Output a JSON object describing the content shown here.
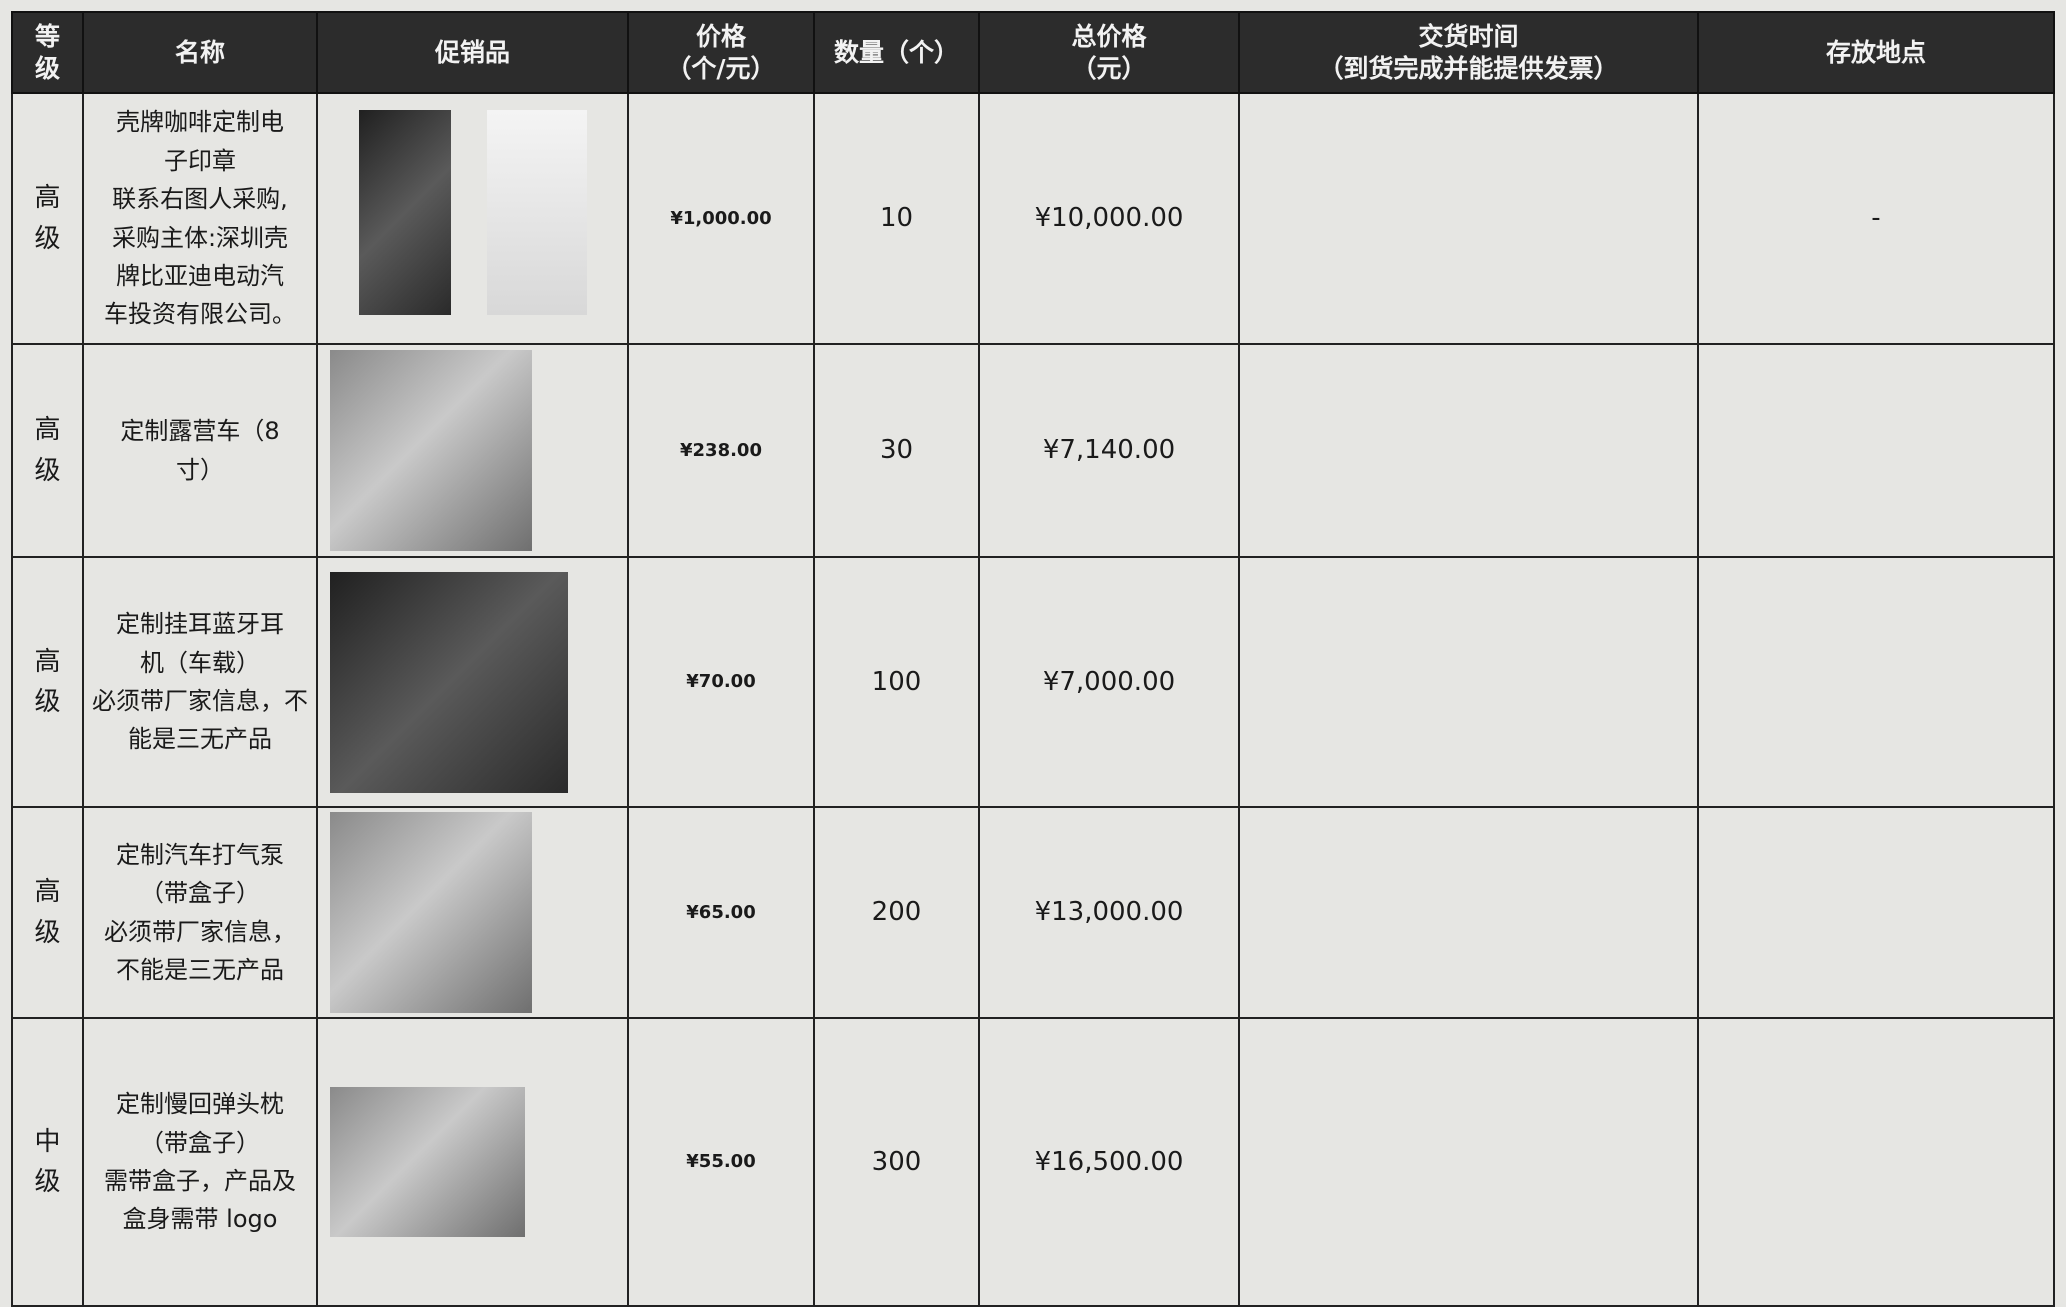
{
  "header": {
    "grade": [
      "等",
      "级"
    ],
    "name": "名称",
    "product": "促销品",
    "price": [
      "价格",
      "（个/元）"
    ],
    "quantity": "数量（个）",
    "total": [
      "总价格",
      "（元）"
    ],
    "delivery": [
      "交货时间",
      "（到货完成并能提供发票）"
    ],
    "storage": "存放地点"
  },
  "rows": [
    {
      "grade": [
        "高",
        "级"
      ],
      "name": [
        "壳牌咖啡定制电",
        "子印章",
        "联系右图人采购,",
        "采购主体:深圳壳",
        "牌比亚迪电动汽",
        "车投资有限公司。"
      ],
      "price": "¥1,000.00",
      "quantity": 10,
      "total": "¥10,000.00",
      "storage": "-"
    },
    {
      "grade": [
        "高",
        "级"
      ],
      "name": [
        "定制露营车（8",
        "寸）"
      ],
      "price": "¥238.00",
      "quantity": 30,
      "total": "¥7,140.00"
    },
    {
      "grade": [
        "高",
        "级"
      ],
      "name": [
        "定制挂耳蓝牙耳",
        "机（车载）",
        "必须带厂家信息，不",
        "能是三无产品"
      ],
      "price": "¥70.00",
      "quantity": 100,
      "total": "¥7,000.00"
    },
    {
      "grade": [
        "高",
        "级"
      ],
      "name": [
        "定制汽车打气泵",
        "（带盒子）",
        "必须带厂家信息，",
        "不能是三无产品"
      ],
      "price": "¥65.00",
      "quantity": 200,
      "total": "¥13,000.00"
    },
    {
      "grade": [
        "中",
        "级"
      ],
      "name": [
        "定制慢回弹头枕",
        "（带盒子）",
        "需带盒子，产品及",
        "盒身需带 logo"
      ],
      "price": "¥55.00",
      "quantity": 300,
      "total": "¥16,500.00"
    }
  ]
}
